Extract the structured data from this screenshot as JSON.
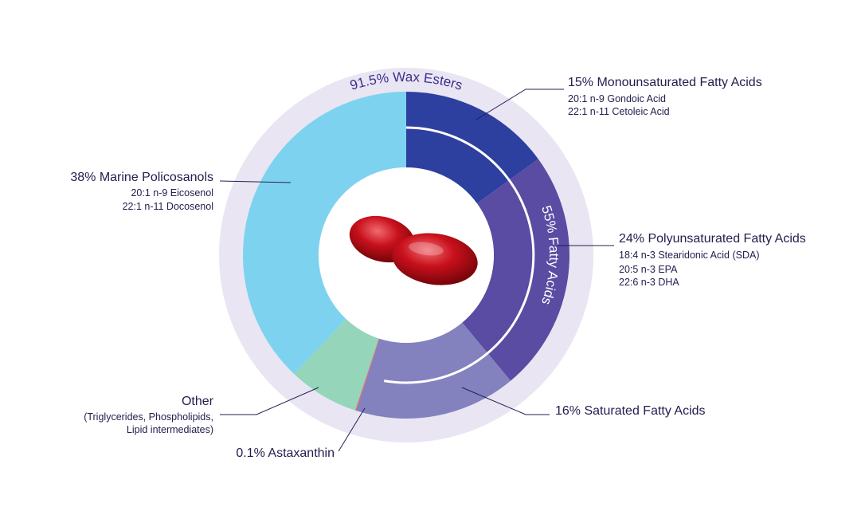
{
  "chart_data": {
    "type": "donut",
    "categories": [
      "15% Monounsaturated Fatty Acids",
      "24% Polyunsaturated Fatty Acids",
      "16% Saturated Fatty Acids",
      "0.1% Astaxanthin",
      "Other",
      "38% Marine Policosanols"
    ],
    "details": [
      [
        "20:1 n-9 Gondoic Acid",
        "22:1 n-11 Cetoleic Acid"
      ],
      [
        "18:4 n-3 Stearidonic Acid (SDA)",
        "20:5 n-3  EPA",
        "22:6 n-3  DHA"
      ],
      [],
      [],
      [
        "(Triglycerides, Phospholipids,",
        "Lipid intermediates)"
      ],
      [
        "20:1 n-9 Eicosenol",
        "22:1 n-11 Docosenol"
      ]
    ],
    "values": [
      15,
      24,
      16,
      0.1,
      7,
      38
    ],
    "colors": [
      "#2d3f9f",
      "#5a4ba3",
      "#8481bf",
      "#ef5a5e",
      "#95d5ba",
      "#7dd3ef"
    ],
    "annotations": [
      "91.5% Wax Esters",
      "55% Fatty Acids"
    ]
  }
}
